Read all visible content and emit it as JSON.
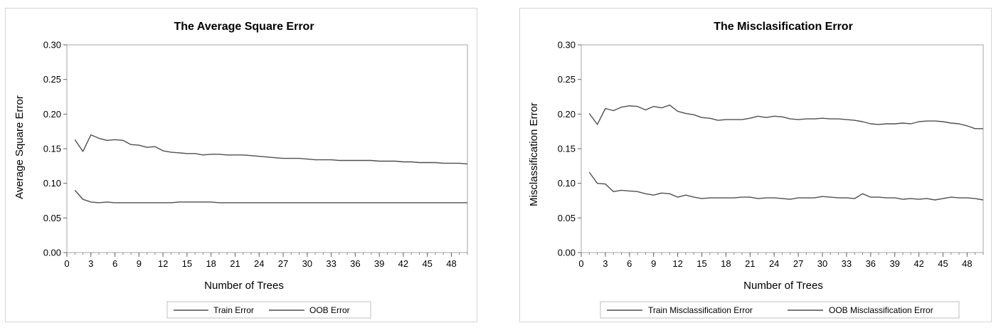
{
  "chart_data": [
    {
      "type": "line",
      "title": "The Average Square Error",
      "xlabel": "Number of Trees",
      "ylabel": "Average Square Error",
      "xlim": [
        0,
        50
      ],
      "ylim": [
        0,
        0.3
      ],
      "xticks": [
        "0",
        "3",
        "6",
        "9",
        "12",
        "15",
        "18",
        "21",
        "24",
        "27",
        "30",
        "33",
        "36",
        "39",
        "42",
        "45",
        "48"
      ],
      "yticks": [
        "0.00",
        "0.05",
        "0.10",
        "0.15",
        "0.20",
        "0.25",
        "0.30"
      ],
      "grid": false,
      "legend_position": "bottom",
      "legend_labels": [
        "Train Error",
        "OOB Error"
      ],
      "x": [
        1,
        2,
        3,
        4,
        5,
        6,
        7,
        8,
        9,
        10,
        11,
        12,
        13,
        14,
        15,
        16,
        17,
        18,
        19,
        20,
        21,
        22,
        23,
        24,
        25,
        26,
        27,
        28,
        29,
        30,
        31,
        32,
        33,
        34,
        35,
        36,
        37,
        38,
        39,
        40,
        41,
        42,
        43,
        44,
        45,
        46,
        47,
        48,
        49,
        50
      ],
      "series": [
        {
          "values": [
            0.163,
            0.146,
            0.17,
            0.165,
            0.162,
            0.163,
            0.162,
            0.156,
            0.155,
            0.152,
            0.153,
            0.147,
            0.145,
            0.144,
            0.143,
            0.143,
            0.141,
            0.142,
            0.142,
            0.141,
            0.141,
            0.141,
            0.14,
            0.139,
            0.138,
            0.137,
            0.136,
            0.136,
            0.136,
            0.135,
            0.134,
            0.134,
            0.134,
            0.133,
            0.133,
            0.133,
            0.133,
            0.133,
            0.132,
            0.132,
            0.132,
            0.131,
            0.131,
            0.13,
            0.13,
            0.13,
            0.129,
            0.129,
            0.129,
            0.128
          ]
        },
        {
          "values": [
            0.09,
            0.077,
            0.073,
            0.072,
            0.073,
            0.072,
            0.072,
            0.072,
            0.072,
            0.072,
            0.072,
            0.072,
            0.072,
            0.073,
            0.073,
            0.073,
            0.073,
            0.073,
            0.072,
            0.072,
            0.072,
            0.072,
            0.072,
            0.072,
            0.072,
            0.072,
            0.072,
            0.072,
            0.072,
            0.072,
            0.072,
            0.072,
            0.072,
            0.072,
            0.072,
            0.072,
            0.072,
            0.072,
            0.072,
            0.072,
            0.072,
            0.072,
            0.072,
            0.072,
            0.072,
            0.072,
            0.072,
            0.072,
            0.072,
            0.072
          ]
        }
      ],
      "line_color": "#4f4f4f"
    },
    {
      "type": "line",
      "title": "The Misclasification Error",
      "xlabel": "Number of Trees",
      "ylabel": "Misclassification Error",
      "xlim": [
        0,
        50
      ],
      "ylim": [
        0,
        0.3
      ],
      "xticks": [
        "0",
        "3",
        "6",
        "9",
        "12",
        "15",
        "18",
        "21",
        "24",
        "27",
        "30",
        "33",
        "36",
        "39",
        "42",
        "45",
        "48"
      ],
      "yticks": [
        "0.00",
        "0.05",
        "0.10",
        "0.15",
        "0.20",
        "0.25",
        "0.30"
      ],
      "grid": false,
      "legend_position": "bottom",
      "legend_labels": [
        "Train Misclassification Error",
        "OOB Misclassification Error"
      ],
      "x": [
        1,
        2,
        3,
        4,
        5,
        6,
        7,
        8,
        9,
        10,
        11,
        12,
        13,
        14,
        15,
        16,
        17,
        18,
        19,
        20,
        21,
        22,
        23,
        24,
        25,
        26,
        27,
        28,
        29,
        30,
        31,
        32,
        33,
        34,
        35,
        36,
        37,
        38,
        39,
        40,
        41,
        42,
        43,
        44,
        45,
        46,
        47,
        48,
        49,
        50
      ],
      "series": [
        {
          "values": [
            0.201,
            0.185,
            0.208,
            0.205,
            0.21,
            0.212,
            0.211,
            0.206,
            0.211,
            0.209,
            0.213,
            0.204,
            0.201,
            0.199,
            0.195,
            0.194,
            0.191,
            0.192,
            0.192,
            0.192,
            0.194,
            0.197,
            0.195,
            0.197,
            0.196,
            0.193,
            0.192,
            0.193,
            0.193,
            0.194,
            0.193,
            0.193,
            0.192,
            0.191,
            0.189,
            0.186,
            0.185,
            0.186,
            0.186,
            0.187,
            0.186,
            0.189,
            0.19,
            0.19,
            0.189,
            0.187,
            0.186,
            0.183,
            0.179,
            0.179
          ]
        },
        {
          "values": [
            0.116,
            0.1,
            0.099,
            0.088,
            0.09,
            0.089,
            0.088,
            0.085,
            0.083,
            0.086,
            0.085,
            0.08,
            0.083,
            0.08,
            0.078,
            0.079,
            0.079,
            0.079,
            0.079,
            0.08,
            0.08,
            0.078,
            0.079,
            0.079,
            0.078,
            0.077,
            0.079,
            0.079,
            0.079,
            0.081,
            0.08,
            0.079,
            0.079,
            0.078,
            0.085,
            0.08,
            0.08,
            0.079,
            0.079,
            0.077,
            0.078,
            0.077,
            0.078,
            0.076,
            0.078,
            0.08,
            0.079,
            0.079,
            0.078,
            0.076
          ]
        }
      ],
      "line_color": "#4f4f4f"
    }
  ]
}
